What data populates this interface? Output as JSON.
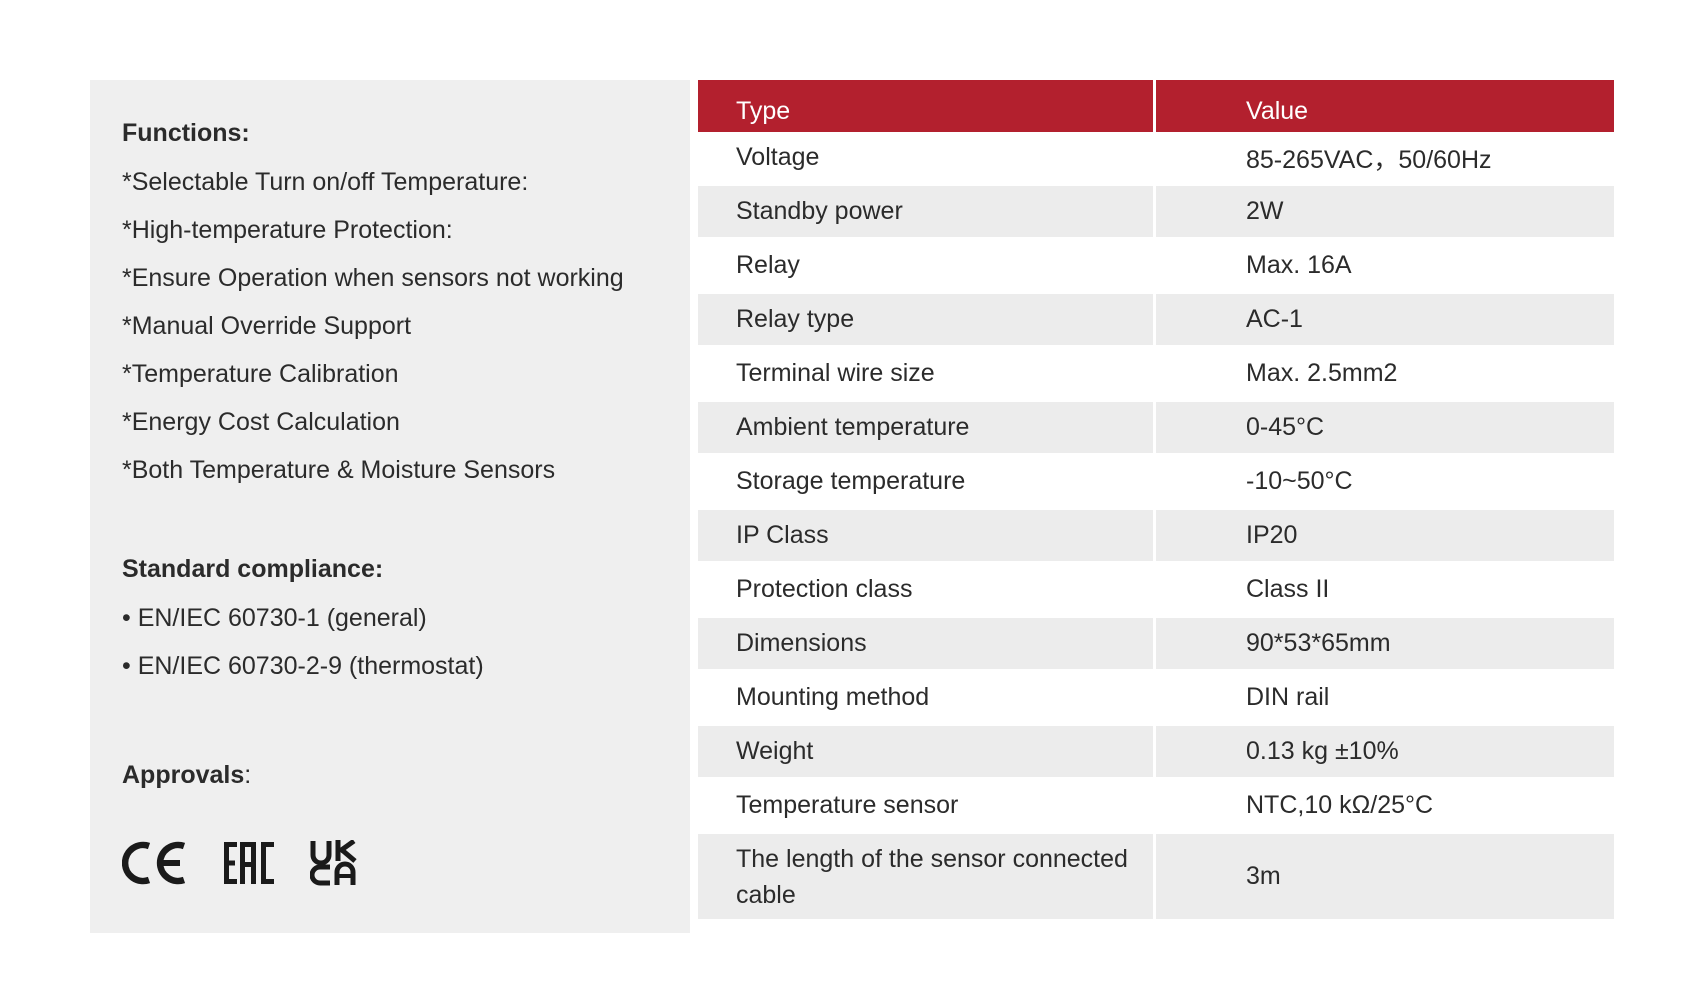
{
  "functions": {
    "title": "Functions:",
    "items": [
      "*Selectable Turn on/off Temperature:",
      "*High-temperature Protection:",
      "*Ensure Operation when sensors not working",
      "*Manual Override Support",
      "*Temperature Calibration",
      "*Energy Cost Calculation",
      "*Both Temperature & Moisture Sensors"
    ]
  },
  "standards": {
    "title": "Standard compliance:",
    "items": [
      "• EN/IEC 60730-1 (general)",
      "• EN/IEC 60730-2-9 (thermostat)"
    ]
  },
  "approvals": {
    "title": "Approvals",
    "colon": ":",
    "logos": [
      "CE",
      "EAC",
      "UKCA"
    ]
  },
  "table": {
    "header": {
      "type": "Type",
      "value": "Value"
    },
    "header_color": "#b3202e",
    "rows": [
      {
        "type": "Voltage",
        "value": "85-265VAC，50/60Hz"
      },
      {
        "type": "Standby power",
        "value": "2W"
      },
      {
        "type": "Relay",
        "value": "Max. 16A"
      },
      {
        "type": "Relay type",
        "value": "AC-1"
      },
      {
        "type": "Terminal wire size",
        "value": "Max. 2.5mm2"
      },
      {
        "type": "Ambient temperature",
        "value": "0-45°C"
      },
      {
        "type": "Storage temperature",
        "value": "-10~50°C"
      },
      {
        "type": "IP Class",
        "value": "IP20"
      },
      {
        "type": "Protection class",
        "value": "Class II"
      },
      {
        "type": "Dimensions",
        "value": "90*53*65mm"
      },
      {
        "type": "Mounting method",
        "value": "DIN rail"
      },
      {
        "type": "Weight",
        "value": "0.13 kg ±10%"
      },
      {
        "type": "Temperature sensor",
        "value": "NTC,10 kΩ/25°C"
      },
      {
        "type": "The length of the sensor connected cable",
        "value": "3m"
      }
    ]
  }
}
